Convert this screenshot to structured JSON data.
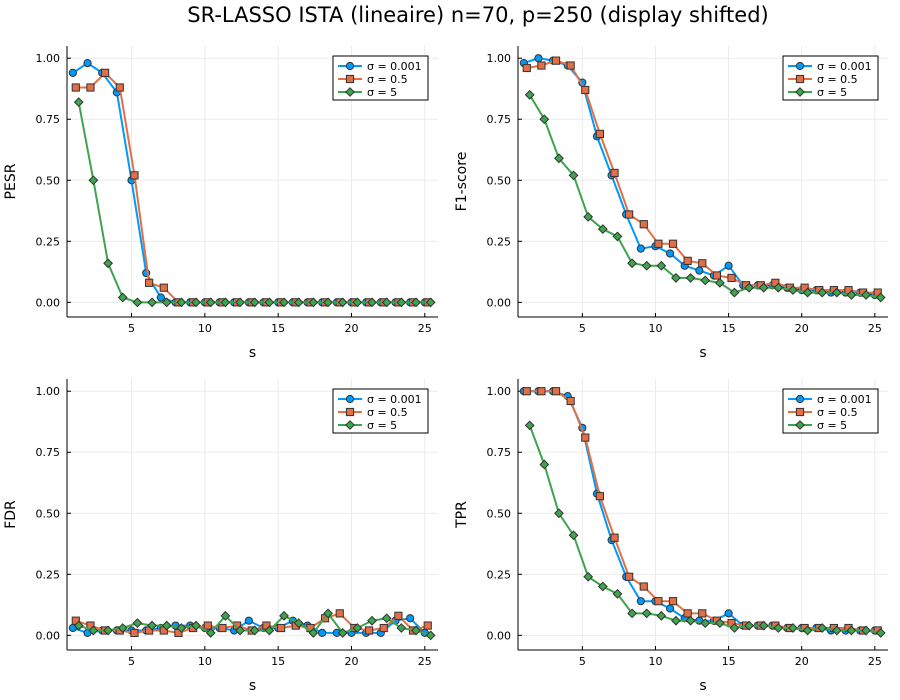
{
  "title": "SR-LASSO ISTA (lineaire) n=70, p=250 (display shifted)",
  "colors": {
    "series": [
      "#009AFA",
      "#E36F47",
      "#3EA44E"
    ],
    "grid": "#EBEBEB",
    "axis": "#000000"
  },
  "chart_data": [
    {
      "type": "line",
      "xlabel": "s",
      "ylabel": "PESR",
      "xlim": [
        0.6,
        25.9
      ],
      "ylim": [
        -0.06,
        1.05
      ],
      "xticks": [
        5,
        10,
        15,
        20,
        25
      ],
      "yticks": [
        0.0,
        0.25,
        0.5,
        0.75,
        1.0
      ],
      "ytick_labels": [
        "0.00",
        "0.25",
        "0.50",
        "0.75",
        "1.00"
      ],
      "grid": true,
      "legend": "top-right",
      "series": [
        {
          "name": "σ = 0.001",
          "marker": "circle",
          "x": [
            1.0,
            2.0,
            3.0,
            4.0,
            5.0,
            6.0,
            7.0,
            8.0,
            9.0,
            10.0,
            11.0,
            12.0,
            13.0,
            14.0,
            15.0,
            16.0,
            17.0,
            18.0,
            19.0,
            20.0,
            21.0,
            22.0,
            23.0,
            24.0,
            25.0
          ],
          "values": [
            0.94,
            0.98,
            0.94,
            0.86,
            0.5,
            0.12,
            0.02,
            0,
            0,
            0,
            0,
            0,
            0,
            0,
            0,
            0,
            0,
            0,
            0,
            0,
            0,
            0,
            0,
            0,
            0
          ]
        },
        {
          "name": "σ = 0.5",
          "marker": "square",
          "x": [
            1.2,
            2.2,
            3.2,
            4.2,
            5.2,
            6.2,
            7.2,
            8.2,
            9.2,
            10.2,
            11.2,
            12.2,
            13.2,
            14.2,
            15.2,
            16.2,
            17.2,
            18.2,
            19.2,
            20.2,
            21.2,
            22.2,
            23.2,
            24.2,
            25.2
          ],
          "values": [
            0.88,
            0.88,
            0.94,
            0.88,
            0.52,
            0.08,
            0.06,
            0,
            0,
            0,
            0,
            0,
            0,
            0,
            0,
            0,
            0,
            0,
            0,
            0,
            0,
            0,
            0,
            0,
            0
          ]
        },
        {
          "name": "σ = 5",
          "marker": "diamond",
          "x": [
            1.4,
            2.4,
            3.4,
            4.4,
            5.4,
            6.4,
            7.4,
            8.4,
            9.4,
            10.4,
            11.4,
            12.4,
            13.4,
            14.4,
            15.4,
            16.4,
            17.4,
            18.4,
            19.4,
            20.4,
            21.4,
            22.4,
            23.4,
            24.4,
            25.4
          ],
          "values": [
            0.82,
            0.5,
            0.16,
            0.02,
            0,
            0,
            0,
            0,
            0,
            0,
            0,
            0,
            0,
            0,
            0,
            0,
            0,
            0,
            0,
            0,
            0,
            0,
            0,
            0,
            0
          ]
        }
      ]
    },
    {
      "type": "line",
      "xlabel": "s",
      "ylabel": "F1-score",
      "xlim": [
        0.6,
        25.9
      ],
      "ylim": [
        -0.06,
        1.05
      ],
      "xticks": [
        5,
        10,
        15,
        20,
        25
      ],
      "yticks": [
        0.0,
        0.25,
        0.5,
        0.75,
        1.0
      ],
      "ytick_labels": [
        "0.00",
        "0.25",
        "0.50",
        "0.75",
        "1.00"
      ],
      "grid": true,
      "legend": "top-right",
      "series": [
        {
          "name": "σ = 0.001",
          "marker": "circle",
          "x": [
            1.0,
            2.0,
            3.0,
            4.0,
            5.0,
            6.0,
            7.0,
            8.0,
            9.0,
            10.0,
            11.0,
            12.0,
            13.0,
            14.0,
            15.0,
            16.0,
            17.0,
            18.0,
            19.0,
            20.0,
            21.0,
            22.0,
            23.0,
            24.0,
            25.0
          ],
          "values": [
            0.98,
            1.0,
            0.99,
            0.97,
            0.9,
            0.68,
            0.52,
            0.36,
            0.22,
            0.23,
            0.2,
            0.15,
            0.13,
            0.11,
            0.15,
            0.07,
            0.07,
            0.07,
            0.06,
            0.05,
            0.05,
            0.04,
            0.04,
            0.04,
            0.03
          ]
        },
        {
          "name": "σ = 0.5",
          "marker": "square",
          "x": [
            1.2,
            2.2,
            3.2,
            4.2,
            5.2,
            6.2,
            7.2,
            8.2,
            9.2,
            10.2,
            11.2,
            12.2,
            13.2,
            14.2,
            15.2,
            16.2,
            17.2,
            18.2,
            19.2,
            20.2,
            21.2,
            22.2,
            23.2,
            24.2,
            25.2
          ],
          "values": [
            0.96,
            0.97,
            0.99,
            0.97,
            0.87,
            0.69,
            0.53,
            0.36,
            0.32,
            0.24,
            0.24,
            0.17,
            0.16,
            0.11,
            0.1,
            0.07,
            0.07,
            0.08,
            0.06,
            0.06,
            0.05,
            0.05,
            0.05,
            0.04,
            0.04
          ]
        },
        {
          "name": "σ = 5",
          "marker": "diamond",
          "x": [
            1.4,
            2.4,
            3.4,
            4.4,
            5.4,
            6.4,
            7.4,
            8.4,
            9.4,
            10.4,
            11.4,
            12.4,
            13.4,
            14.4,
            15.4,
            16.4,
            17.4,
            18.4,
            19.4,
            20.4,
            21.4,
            22.4,
            23.4,
            24.4,
            25.4
          ],
          "values": [
            0.85,
            0.75,
            0.59,
            0.52,
            0.35,
            0.3,
            0.27,
            0.16,
            0.15,
            0.15,
            0.1,
            0.1,
            0.09,
            0.08,
            0.04,
            0.06,
            0.06,
            0.06,
            0.05,
            0.04,
            0.04,
            0.04,
            0.03,
            0.03,
            0.02
          ]
        }
      ]
    },
    {
      "type": "line",
      "xlabel": "s",
      "ylabel": "FDR",
      "xlim": [
        0.6,
        25.9
      ],
      "ylim": [
        -0.06,
        1.05
      ],
      "xticks": [
        5,
        10,
        15,
        20,
        25
      ],
      "yticks": [
        0.0,
        0.25,
        0.5,
        0.75,
        1.0
      ],
      "ytick_labels": [
        "0.00",
        "0.25",
        "0.50",
        "0.75",
        "1.00"
      ],
      "grid": true,
      "legend": "top-right",
      "series": [
        {
          "name": "σ = 0.001",
          "marker": "circle",
          "x": [
            1.0,
            2.0,
            3.0,
            4.0,
            5.0,
            6.0,
            7.0,
            8.0,
            9.0,
            10.0,
            11.0,
            12.0,
            13.0,
            14.0,
            15.0,
            16.0,
            17.0,
            18.0,
            19.0,
            20.0,
            21.0,
            22.0,
            23.0,
            24.0,
            25.0
          ],
          "values": [
            0.03,
            0.01,
            0.02,
            0.02,
            0.02,
            0.02,
            0.03,
            0.04,
            0.04,
            0.03,
            0.03,
            0.02,
            0.06,
            0.03,
            0.03,
            0.06,
            0.04,
            0.01,
            0.01,
            0.01,
            0.01,
            0.01,
            0.06,
            0.07,
            0.01
          ]
        },
        {
          "name": "σ = 0.5",
          "marker": "square",
          "x": [
            1.2,
            2.2,
            3.2,
            4.2,
            5.2,
            6.2,
            7.2,
            8.2,
            9.2,
            10.2,
            11.2,
            12.2,
            13.2,
            14.2,
            15.2,
            16.2,
            17.2,
            18.2,
            19.2,
            20.2,
            21.2,
            22.2,
            23.2,
            24.2,
            25.2
          ],
          "values": [
            0.06,
            0.04,
            0.02,
            0.02,
            0.01,
            0.02,
            0.02,
            0.01,
            0.03,
            0.04,
            0.03,
            0.04,
            0.02,
            0.04,
            0.03,
            0.04,
            0.03,
            0.07,
            0.09,
            0.03,
            0.02,
            0.03,
            0.08,
            0.02,
            0.04
          ]
        },
        {
          "name": "σ = 5",
          "marker": "diamond",
          "x": [
            1.4,
            2.4,
            3.4,
            4.4,
            5.4,
            6.4,
            7.4,
            8.4,
            9.4,
            10.4,
            11.4,
            12.4,
            13.4,
            14.4,
            15.4,
            16.4,
            17.4,
            18.4,
            19.4,
            20.4,
            21.4,
            22.4,
            23.4,
            24.4,
            25.4
          ],
          "values": [
            0.04,
            0.02,
            0.02,
            0.03,
            0.05,
            0.04,
            0.04,
            0.03,
            0.04,
            0.01,
            0.08,
            0.02,
            0.02,
            0.02,
            0.08,
            0.05,
            0.01,
            0.09,
            0.01,
            0.03,
            0.06,
            0.07,
            0.03,
            0.02,
            0.0
          ]
        }
      ]
    },
    {
      "type": "line",
      "xlabel": "s",
      "ylabel": "TPR",
      "xlim": [
        0.6,
        25.9
      ],
      "ylim": [
        -0.06,
        1.05
      ],
      "xticks": [
        5,
        10,
        15,
        20,
        25
      ],
      "yticks": [
        0.0,
        0.25,
        0.5,
        0.75,
        1.0
      ],
      "ytick_labels": [
        "0.00",
        "0.25",
        "0.50",
        "0.75",
        "1.00"
      ],
      "grid": true,
      "legend": "top-right",
      "series": [
        {
          "name": "σ = 0.001",
          "marker": "circle",
          "x": [
            1.0,
            2.0,
            3.0,
            4.0,
            5.0,
            6.0,
            7.0,
            8.0,
            9.0,
            10.0,
            11.0,
            12.0,
            13.0,
            14.0,
            15.0,
            16.0,
            17.0,
            18.0,
            19.0,
            20.0,
            21.0,
            22.0,
            23.0,
            24.0,
            25.0
          ],
          "values": [
            1.0,
            1.0,
            1.0,
            0.98,
            0.85,
            0.58,
            0.39,
            0.24,
            0.14,
            0.14,
            0.11,
            0.07,
            0.06,
            0.06,
            0.09,
            0.04,
            0.04,
            0.04,
            0.03,
            0.03,
            0.03,
            0.02,
            0.02,
            0.02,
            0.02
          ]
        },
        {
          "name": "σ = 0.5",
          "marker": "square",
          "x": [
            1.2,
            2.2,
            3.2,
            4.2,
            5.2,
            6.2,
            7.2,
            8.2,
            9.2,
            10.2,
            11.2,
            12.2,
            13.2,
            14.2,
            15.2,
            16.2,
            17.2,
            18.2,
            19.2,
            20.2,
            21.2,
            22.2,
            23.2,
            24.2,
            25.2
          ],
          "values": [
            1.0,
            1.0,
            1.0,
            0.96,
            0.81,
            0.57,
            0.4,
            0.24,
            0.2,
            0.14,
            0.14,
            0.09,
            0.09,
            0.06,
            0.05,
            0.04,
            0.04,
            0.04,
            0.03,
            0.03,
            0.03,
            0.03,
            0.03,
            0.02,
            0.02
          ]
        },
        {
          "name": "σ = 5",
          "marker": "diamond",
          "x": [
            1.4,
            2.4,
            3.4,
            4.4,
            5.4,
            6.4,
            7.4,
            8.4,
            9.4,
            10.4,
            11.4,
            12.4,
            13.4,
            14.4,
            15.4,
            16.4,
            17.4,
            18.4,
            19.4,
            20.4,
            21.4,
            22.4,
            23.4,
            24.4,
            25.4
          ],
          "values": [
            0.86,
            0.7,
            0.5,
            0.41,
            0.24,
            0.2,
            0.17,
            0.09,
            0.09,
            0.08,
            0.06,
            0.06,
            0.05,
            0.05,
            0.03,
            0.04,
            0.04,
            0.03,
            0.03,
            0.02,
            0.03,
            0.02,
            0.02,
            0.02,
            0.01
          ]
        }
      ]
    }
  ]
}
